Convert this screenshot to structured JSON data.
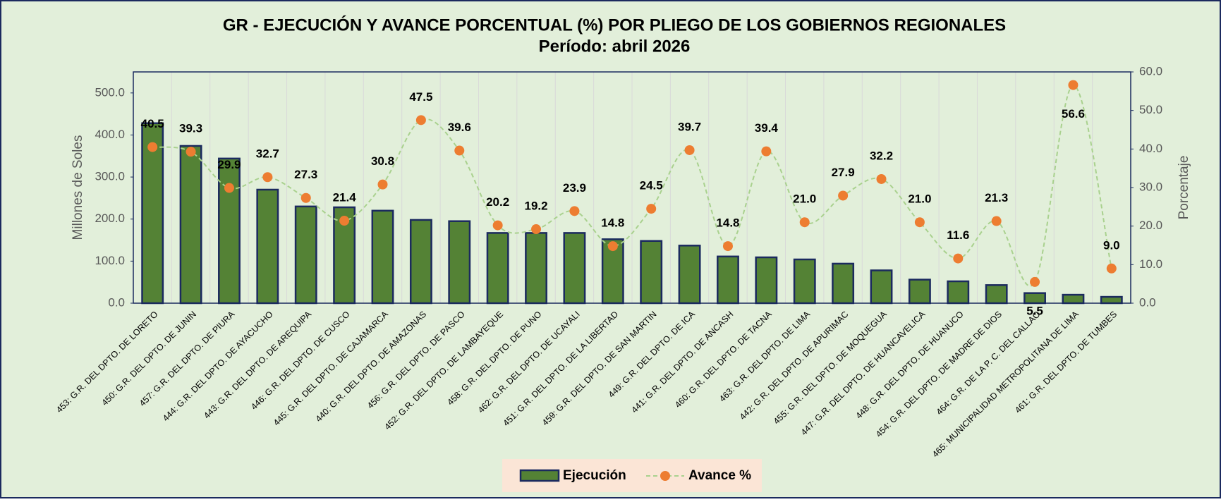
{
  "chart_data": {
    "type": "bar_line",
    "title": "GR - EJECUCIÓN Y AVANCE PORCENTUAL (%) POR PLIEGO DE LOS GOBIERNOS REGIONALES",
    "subtitle": "Período:  abril 2026",
    "y_label": "Millones de Soles",
    "y2_label": "Porcentaje",
    "categories": [
      "453: G.R. DEL DPTO. DE LORETO",
      "450: G.R. DEL DPTO. DE JUNIN",
      "457: G.R. DEL DPTO. DE PIURA",
      "444: G.R. DEL DPTO. DE AYACUCHO",
      "443: G.R. DEL DPTO. DE AREQUIPA",
      "446: G.R. DEL DPTO. DE CUSCO",
      "445: G.R. DEL DPTO. DE CAJAMARCA",
      "440: G.R. DEL DPTO. DE AMAZONAS",
      "456: G.R. DEL DPTO. DE PASCO",
      "452: G.R. DEL DPTO. DE LAMBAYEQUE",
      "458: G.R. DEL DPTO. DE PUNO",
      "462: G.R. DEL DPTO. DE UCAYALI",
      "451: G.R. DEL DPTO. DE LA LIBERTAD",
      "459: G.R. DEL DPTO. DE SAN MARTIN",
      "449: G.R. DEL DPTO. DE ICA",
      "441: G.R. DEL DPTO. DE ANCASH",
      "460: G.R. DEL DPTO. DE TACNA",
      "463: G.R. DEL DPTO. DE LIMA",
      "442: G.R. DEL DPTO. DE APURIMAC",
      "455: G.R. DEL DPTO. DE MOQUEGUA",
      "447: G.R. DEL DPTO. DE HUANCAVELICA",
      "448: G.R. DEL DPTO. DE HUANUCO",
      "454: G.R. DEL DPTO. DE MADRE DE DIOS",
      "464: G.R. DE LA P. C. DEL CALLAO",
      "465: MUNICIPALIDAD METROPOLITANA DE LIMA",
      "461: G.R. DEL DPTO. DE TUMBES"
    ],
    "series": [
      {
        "name": "Ejecución",
        "color": "#548235",
        "edge_color": "#1b2a5e",
        "values": [
          428,
          374,
          344,
          270,
          230,
          228,
          220,
          198,
          195,
          167,
          167,
          167,
          152,
          148,
          137,
          111,
          109,
          104,
          94,
          78,
          56,
          52,
          43,
          24,
          20,
          15
        ]
      },
      {
        "name": "Avance %",
        "color": "#ed7d31",
        "line_color": "#a9d18e",
        "axis": "y2",
        "values": [
          40.5,
          39.3,
          29.9,
          32.7,
          27.3,
          21.4,
          30.8,
          47.5,
          39.6,
          20.2,
          19.2,
          23.9,
          14.8,
          24.5,
          39.7,
          14.8,
          39.4,
          21.0,
          27.9,
          32.2,
          21.0,
          11.6,
          21.3,
          5.5,
          56.6,
          9.0
        ],
        "value_labels": [
          "40.5",
          "39.3",
          "29.9",
          "32.7",
          "27.3",
          "21.4",
          "30.8",
          "47.5",
          "39.6",
          "20.2",
          "19.2",
          "23.9",
          "14.8",
          "24.5",
          "39.7",
          "14.8",
          "39.4",
          "21.0",
          "27.9",
          "32.2",
          "21.0",
          "11.6",
          "21.3",
          "5.5",
          "56.6",
          "9.0"
        ]
      }
    ],
    "ylim": [
      0,
      550
    ],
    "yticks": [
      {
        "value": 0,
        "label": "0.0"
      },
      {
        "value": 100,
        "label": "100.0"
      },
      {
        "value": 200,
        "label": "200.0"
      },
      {
        "value": 300,
        "label": "300.0"
      },
      {
        "value": 400,
        "label": "400.0"
      },
      {
        "value": 500,
        "label": "500.0"
      }
    ],
    "y2lim": [
      0,
      60
    ],
    "y2ticks": [
      {
        "value": 0,
        "label": "0.0"
      },
      {
        "value": 10,
        "label": "10.0"
      },
      {
        "value": 20,
        "label": "20.0"
      },
      {
        "value": 30,
        "label": "30.0"
      },
      {
        "value": 40,
        "label": "40.0"
      },
      {
        "value": 50,
        "label": "50.0"
      },
      {
        "value": 60,
        "label": "60.0"
      }
    ],
    "legend": "bottom"
  }
}
